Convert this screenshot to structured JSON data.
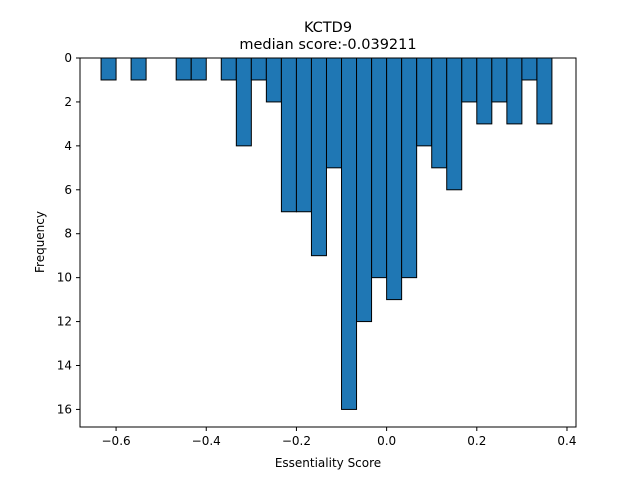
{
  "chart_data": {
    "type": "bar",
    "title": "KCTD9",
    "subtitle": "median score:-0.039211",
    "xlabel": "Essentiality Score",
    "ylabel": "Frequency",
    "xlim": [
      -0.68,
      0.42
    ],
    "ylim": [
      0,
      16.8
    ],
    "y_inverted": true,
    "bin_width": 0.0333,
    "xticks": [
      -0.6,
      -0.4,
      -0.2,
      0.0,
      0.2,
      0.4
    ],
    "xtick_labels": [
      "−0.6",
      "−0.4",
      "−0.2",
      "0.0",
      "0.2",
      "0.4"
    ],
    "yticks": [
      0,
      2,
      4,
      6,
      8,
      10,
      12,
      14,
      16
    ],
    "ytick_labels": [
      "0",
      "2",
      "4",
      "6",
      "8",
      "10",
      "12",
      "14",
      "16"
    ],
    "bar_color": "#1f77b4",
    "edge_color": "#000000",
    "bins": [
      {
        "left": -0.6333,
        "count": 1
      },
      {
        "left": -0.5667,
        "count": 1
      },
      {
        "left": -0.4667,
        "count": 1
      },
      {
        "left": -0.4333,
        "count": 1
      },
      {
        "left": -0.3667,
        "count": 1
      },
      {
        "left": -0.3333,
        "count": 4
      },
      {
        "left": -0.3,
        "count": 1
      },
      {
        "left": -0.2667,
        "count": 2
      },
      {
        "left": -0.2333,
        "count": 7
      },
      {
        "left": -0.2,
        "count": 7
      },
      {
        "left": -0.1667,
        "count": 9
      },
      {
        "left": -0.1333,
        "count": 5
      },
      {
        "left": -0.1,
        "count": 16
      },
      {
        "left": -0.0667,
        "count": 12
      },
      {
        "left": -0.0333,
        "count": 10
      },
      {
        "left": 0.0,
        "count": 11
      },
      {
        "left": 0.0333,
        "count": 10
      },
      {
        "left": 0.0667,
        "count": 4
      },
      {
        "left": 0.1,
        "count": 5
      },
      {
        "left": 0.1333,
        "count": 6
      },
      {
        "left": 0.1667,
        "count": 2
      },
      {
        "left": 0.2,
        "count": 3
      },
      {
        "left": 0.2333,
        "count": 2
      },
      {
        "left": 0.2667,
        "count": 3
      },
      {
        "left": 0.3,
        "count": 1
      },
      {
        "left": 0.3333,
        "count": 3
      }
    ]
  }
}
